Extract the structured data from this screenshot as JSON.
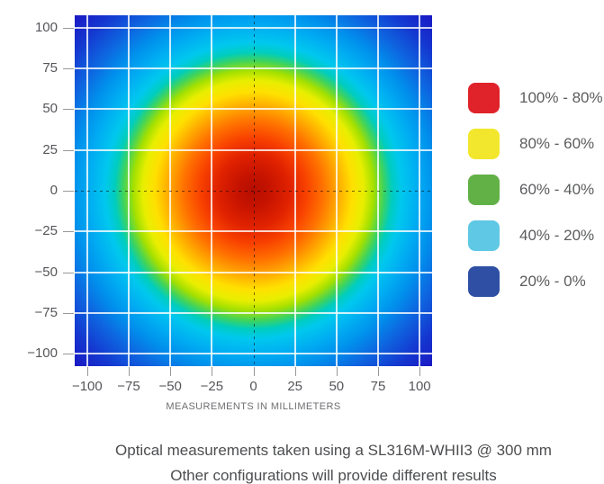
{
  "figure": {
    "caption_line1": "Optical measurements taken using a SL316M-WHII3 @ 300 mm",
    "caption_line2": "Other configurations will provide different results"
  },
  "chart_data": {
    "type": "heatmap",
    "title": "",
    "xlabel": "MEASUREMENTS IN MILLIMETERS",
    "ylabel": "",
    "x_range": [
      -107.5,
      107.5
    ],
    "y_range": [
      -107.5,
      107.5
    ],
    "x_tick_values": [
      -100,
      -75,
      -50,
      -25,
      0,
      25,
      50,
      75,
      100
    ],
    "x_tick_labels": [
      "−100",
      "−75",
      "−50",
      "−25",
      "0",
      "25",
      "50",
      "75",
      "100"
    ],
    "y_tick_values": [
      100,
      75,
      50,
      25,
      0,
      -25,
      -50,
      -75,
      -100
    ],
    "y_tick_labels": [
      "100",
      "75",
      "50",
      "25",
      "0",
      "−25",
      "−50",
      "−75",
      "−100"
    ],
    "grid": true,
    "gridline_color": "rgba(255,255,255,0.8)",
    "zero_axes_style": "dashed-black",
    "beam_center_mm": [
      0,
      0
    ],
    "radial_intensity_profile": [
      {
        "radius_mm": 0,
        "intensity_pct": 100
      },
      {
        "radius_mm": 45,
        "intensity_pct": 80
      },
      {
        "radius_mm": 65,
        "intensity_pct": 60
      },
      {
        "radius_mm": 78,
        "intensity_pct": 40
      },
      {
        "radius_mm": 95,
        "intensity_pct": 20
      },
      {
        "radius_mm": 151,
        "intensity_pct": 3
      }
    ],
    "colormap": "jet",
    "colormap_corner_radius_mm": 152,
    "colormap_stops": [
      {
        "mm": 0,
        "color": "#b50e00"
      },
      {
        "mm": 10,
        "color": "#c61300"
      },
      {
        "mm": 22,
        "color": "#e02200"
      },
      {
        "mm": 32,
        "color": "#f84100"
      },
      {
        "mm": 42,
        "color": "#ff7000"
      },
      {
        "mm": 52,
        "color": "#ffae00"
      },
      {
        "mm": 60,
        "color": "#ffe000"
      },
      {
        "mm": 67,
        "color": "#e8ee00"
      },
      {
        "mm": 73,
        "color": "#a4e000"
      },
      {
        "mm": 79,
        "color": "#3ed35e"
      },
      {
        "mm": 84,
        "color": "#00cdbe"
      },
      {
        "mm": 90,
        "color": "#00c8ee"
      },
      {
        "mm": 100,
        "color": "#00acf2"
      },
      {
        "mm": 110,
        "color": "#0090ec"
      },
      {
        "mm": 122,
        "color": "#0e66e0"
      },
      {
        "mm": 137,
        "color": "#1438d0"
      },
      {
        "mm": 151,
        "color": "#1a1ac4"
      }
    ]
  },
  "legend": {
    "items": [
      {
        "label": "100% - 80%",
        "color": "#e0232a"
      },
      {
        "label": "80% - 60%",
        "color": "#f2e72c"
      },
      {
        "label": "60% - 40%",
        "color": "#62b146"
      },
      {
        "label": "40% - 20%",
        "color": "#5fc8e5"
      },
      {
        "label": "20% - 0%",
        "color": "#2e4fa3"
      }
    ]
  }
}
